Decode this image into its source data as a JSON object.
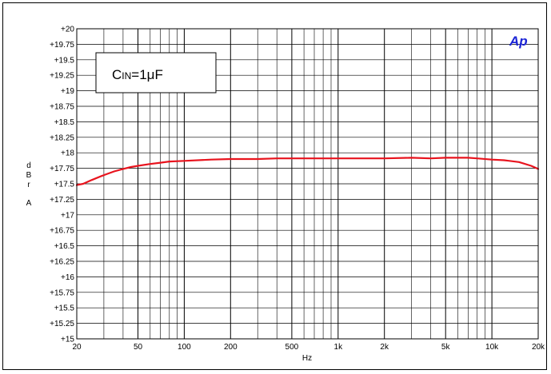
{
  "chart_data": {
    "type": "line",
    "title": "",
    "xlabel": "Hz",
    "ylabel": "dBr A",
    "ylabel_lines": [
      "d",
      "B",
      "r",
      "A"
    ],
    "x_scale": "log",
    "xlim": [
      20,
      20000
    ],
    "ylim": [
      15,
      20
    ],
    "grid": true,
    "x_ticks": [
      {
        "value": 20,
        "label": "20"
      },
      {
        "value": 50,
        "label": "50"
      },
      {
        "value": 100,
        "label": "100"
      },
      {
        "value": 200,
        "label": "200"
      },
      {
        "value": 500,
        "label": "500"
      },
      {
        "value": 1000,
        "label": "1k"
      },
      {
        "value": 2000,
        "label": "2k"
      },
      {
        "value": 5000,
        "label": "5k"
      },
      {
        "value": 10000,
        "label": "10k"
      },
      {
        "value": 20000,
        "label": "20k"
      }
    ],
    "y_ticks": [
      {
        "value": 20,
        "label": "+20"
      },
      {
        "value": 19.75,
        "label": "+19.75"
      },
      {
        "value": 19.5,
        "label": "+19.5"
      },
      {
        "value": 19.25,
        "label": "+19.25"
      },
      {
        "value": 19,
        "label": "+19"
      },
      {
        "value": 18.75,
        "label": "+18.75"
      },
      {
        "value": 18.5,
        "label": "+18.5"
      },
      {
        "value": 18.25,
        "label": "+18.25"
      },
      {
        "value": 18,
        "label": "+18"
      },
      {
        "value": 17.75,
        "label": "+17.75"
      },
      {
        "value": 17.5,
        "label": "+17.5"
      },
      {
        "value": 17.25,
        "label": "+17.25"
      },
      {
        "value": 17,
        "label": "+17"
      },
      {
        "value": 16.75,
        "label": "+16.75"
      },
      {
        "value": 16.5,
        "label": "+16.5"
      },
      {
        "value": 16.25,
        "label": "+16.25"
      },
      {
        "value": 16,
        "label": "+16"
      },
      {
        "value": 15.75,
        "label": "+15.75"
      },
      {
        "value": 15.5,
        "label": "+15.5"
      },
      {
        "value": 15.25,
        "label": "+15.25"
      },
      {
        "value": 15,
        "label": "+15"
      }
    ],
    "series": [
      {
        "color": "#e8141e",
        "x": [
          20,
          22,
          25,
          30,
          35,
          40,
          45,
          50,
          60,
          70,
          80,
          100,
          150,
          200,
          300,
          400,
          600,
          1000,
          2000,
          3000,
          4000,
          5000,
          6000,
          7000,
          8000,
          10000,
          12000,
          15000,
          18000,
          20000
        ],
        "y": [
          17.48,
          17.5,
          17.56,
          17.64,
          17.7,
          17.74,
          17.77,
          17.79,
          17.82,
          17.84,
          17.86,
          17.87,
          17.89,
          17.9,
          17.9,
          17.91,
          17.91,
          17.91,
          17.91,
          17.92,
          17.91,
          17.92,
          17.92,
          17.92,
          17.91,
          17.89,
          17.88,
          17.85,
          17.79,
          17.74
        ]
      }
    ],
    "annotation": {
      "main": "C",
      "sub": "IN",
      "rest": "=1μF"
    },
    "logo": "Ap",
    "logo_color": "#1b24d6"
  }
}
